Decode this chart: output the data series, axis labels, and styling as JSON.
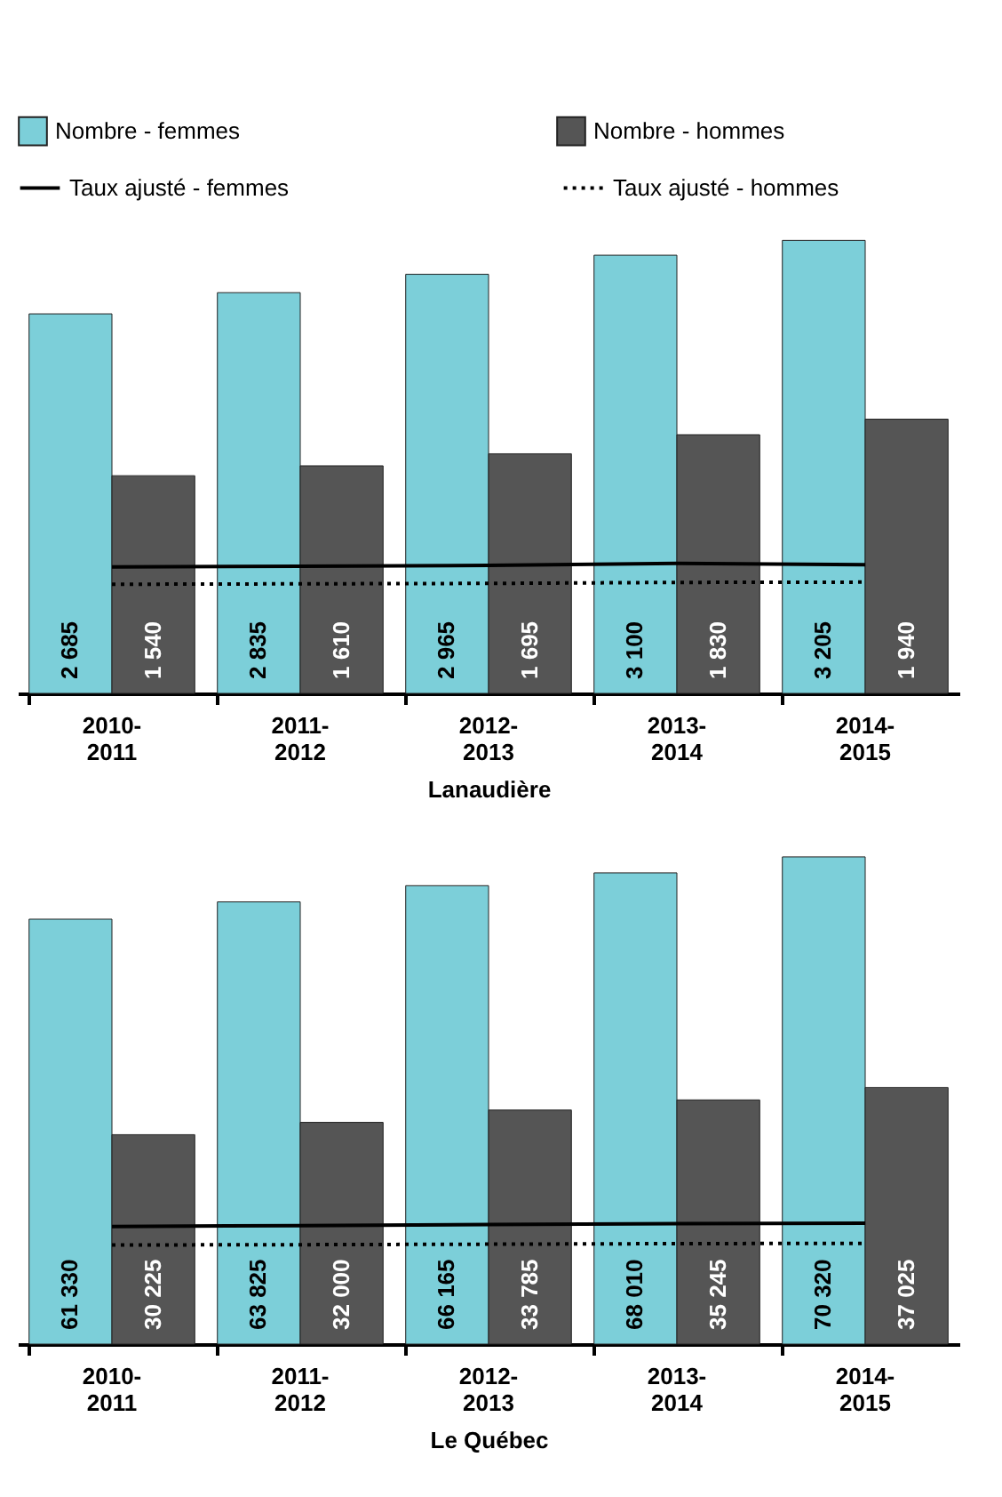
{
  "chart_data": [
    {
      "type": "bar",
      "xlabel": "Lanaudière",
      "categories": [
        "2010-2011",
        "2011-2012",
        "2012-2013",
        "2013-2014",
        "2014-2015"
      ],
      "legend": "top",
      "tick_labels": "x",
      "marker": "none",
      "series": [
        {
          "name": "Nombre - femmes",
          "color": "#7ccfd9",
          "values": [
            2685,
            2835,
            2965,
            3100,
            3205
          ],
          "value_labels": [
            "2 685",
            "2 835",
            "2 965",
            "3 100",
            "3 205"
          ]
        },
        {
          "name": "Nombre - hommes",
          "color": "#555555",
          "values": [
            1540,
            1610,
            1695,
            1830,
            1940
          ],
          "value_labels": [
            "1 540",
            "1 610",
            "1 695",
            "1 830",
            "1 940"
          ]
        },
        {
          "name": "Taux ajusté - femmes",
          "type": "line",
          "color": "#000000",
          "line_style": "solid",
          "values": [
            895,
            900,
            905,
            919,
            910
          ]
        },
        {
          "name": "Taux ajusté - hommes",
          "type": "line",
          "color": "#000000",
          "line_style": "dotted",
          "values": [
            772,
            775,
            778,
            785,
            787
          ]
        }
      ]
    },
    {
      "type": "bar",
      "xlabel": "Le Québec",
      "categories": [
        "2010-2011",
        "2011-2012",
        "2012-2013",
        "2013-2014",
        "2014-2015"
      ],
      "tick_labels": "x",
      "marker": "none",
      "series": [
        {
          "name": "Nombre - femmes",
          "color": "#7ccfd9",
          "values": [
            61330,
            63825,
            66165,
            68010,
            70320
          ],
          "value_labels": [
            "61 330",
            "63 825",
            "66 165",
            "68 010",
            "70 320"
          ]
        },
        {
          "name": "Nombre - hommes",
          "color": "#555555",
          "values": [
            30225,
            32000,
            33785,
            35245,
            37025
          ],
          "value_labels": [
            "30 225",
            "32 000",
            "33 785",
            "35 245",
            "37 025"
          ]
        },
        {
          "name": "Taux ajusté - femmes",
          "type": "line",
          "color": "#000000",
          "line_style": "solid",
          "values": [
            16970,
            17100,
            17250,
            17400,
            17450
          ]
        },
        {
          "name": "Taux ajusté - hommes",
          "type": "line",
          "color": "#000000",
          "line_style": "dotted",
          "values": [
            14300,
            14350,
            14420,
            14500,
            14540
          ]
        }
      ]
    }
  ]
}
